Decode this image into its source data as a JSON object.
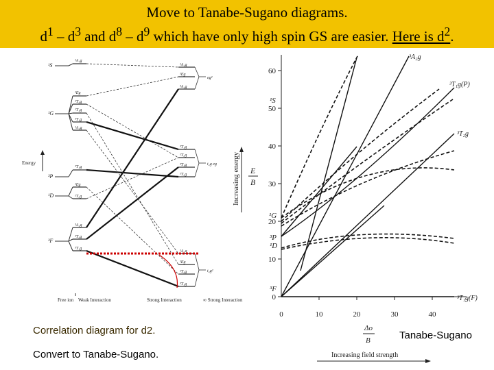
{
  "title": {
    "line1": "Move to Tanabe-Sugano diagrams.",
    "line2_a": "d",
    "line2_sup1": "1",
    "line2_b": " – d",
    "line2_sup2": "3",
    "line2_c": " and d",
    "line2_sup3": "8",
    "line2_d": " – d",
    "line2_sup4": "9",
    "line2_e": "  which have only high spin GS are easier. ",
    "line2_f": "Here is d",
    "line2_sup5": "2",
    "line2_g": "."
  },
  "correlation": {
    "free_ion_terms": [
      "1S",
      "1G",
      "3P",
      "1D",
      "3F"
    ],
    "weak_labels": [
      "1A1g",
      "1A1g",
      "1Eg",
      "1T2g",
      "1T1g",
      "3A1g",
      "3T1g",
      "1Eg",
      "1T2g",
      "3A2g",
      "3T2g",
      "3T1g"
    ],
    "strong_labels": [
      "1A1g",
      "1Eg",
      "3A2g",
      "1T1g",
      "1T2g",
      "3T1g",
      "3T2g",
      "1A1g",
      "1Eg",
      "1T2g",
      "3T1g"
    ],
    "config_labels": [
      "eg2",
      "t2g eg",
      "t2g2"
    ],
    "energy_label": "Energy",
    "axis_labels": [
      "Free ion",
      "Weak Interaction",
      "Strong Interaction",
      "∞ Strong Interaction"
    ],
    "caption": "Correlation diagram for d2.",
    "convert": "Convert to Tanabe-Sugano."
  },
  "tanabe": {
    "y_label": "Increasing energy",
    "ratio_num": "E",
    "ratio_den": "B",
    "x_ratio_num": "Δo",
    "x_ratio_den": "B",
    "x_label": "Increasing field strength",
    "y_ticks": [
      0,
      10,
      20,
      30,
      40,
      50,
      60
    ],
    "x_ticks": [
      0,
      10,
      20,
      30,
      40
    ],
    "left_terms": [
      "1G",
      "3P",
      "1D",
      "3F",
      "1S"
    ],
    "right_terms": [
      "3A2g",
      "3T1g(P)",
      "3T2g",
      "3T1g(F)"
    ],
    "caption": "Tanabe-Sugano"
  },
  "colors": {
    "title_bg": "#f2c200",
    "highlight": "#cc0000"
  }
}
